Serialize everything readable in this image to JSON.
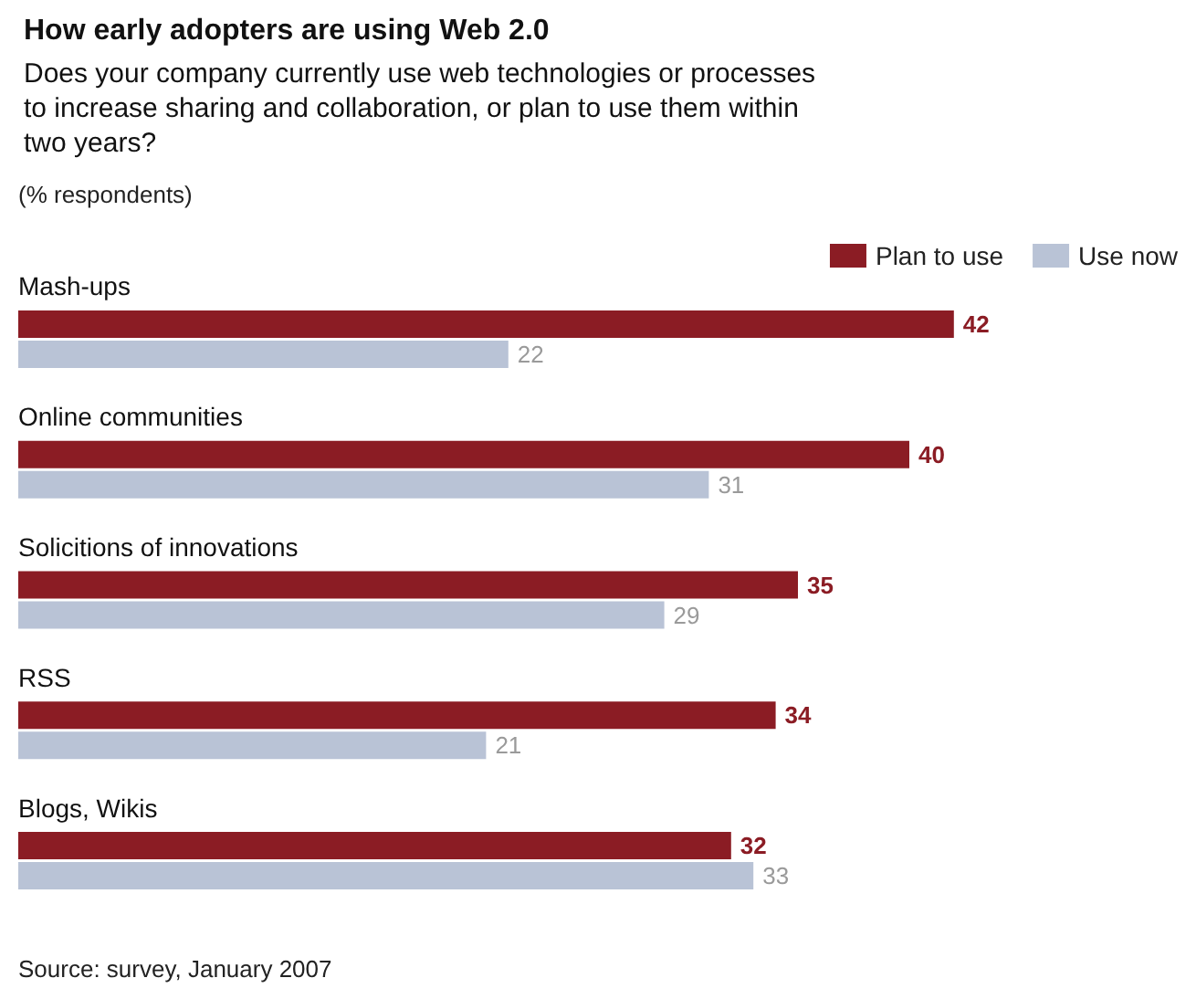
{
  "chart_data": {
    "type": "bar",
    "orientation": "horizontal",
    "title": "How early adopters are using Web 2.0",
    "subtitle": "Does your company currently use web technologies or processes to increase sharing and collaboration, or plan to use them within two years?",
    "annotations": [
      "(% respondents)",
      "Source: survey, January 2007"
    ],
    "categories": [
      "Mash-ups",
      "Online communities",
      "Solicitions of innovations",
      "RSS",
      "Blogs, Wikis"
    ],
    "series": [
      {
        "name": "Plan to use",
        "color": "#8b1c24",
        "values": [
          42,
          40,
          35,
          34,
          32
        ]
      },
      {
        "name": "Use now",
        "color": "#b9c3d6",
        "values": [
          22,
          31,
          29,
          21,
          33
        ]
      }
    ],
    "data_labels": true,
    "legend": "top right"
  }
}
